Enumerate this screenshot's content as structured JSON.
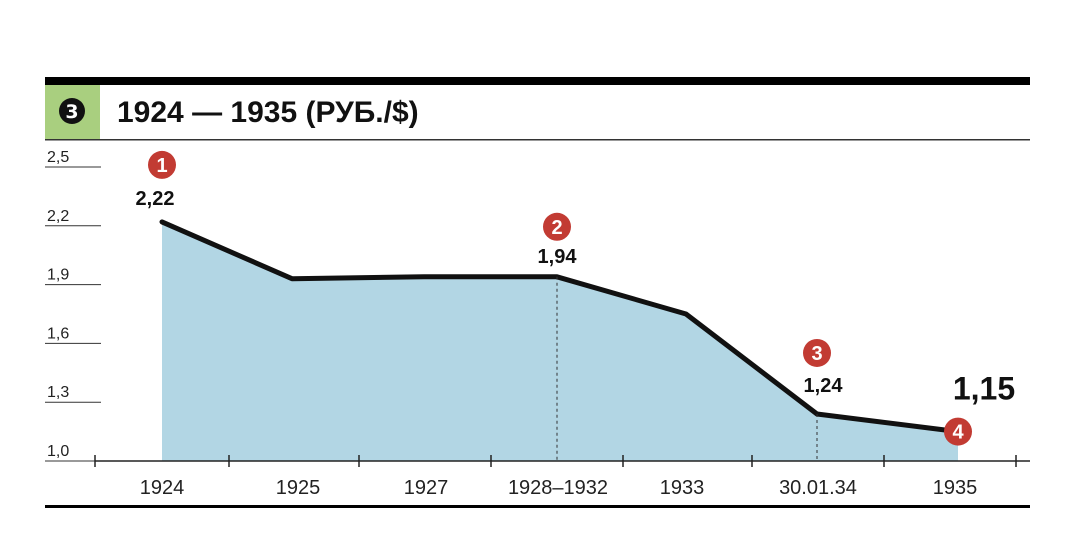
{
  "header": {
    "badge": "3",
    "title": "1924 — 1935 (РУБ./$)"
  },
  "colors": {
    "area": "#b2d6e4",
    "line": "#111111",
    "badge_bg": "#a9cf7f",
    "marker": "#c23b33"
  },
  "chart_data": {
    "type": "area",
    "title": "1924 — 1935 (РУБ./$)",
    "categories": [
      "1924",
      "1925",
      "1927",
      "1928–1932",
      "1933",
      "30.01.34",
      "1935"
    ],
    "values": [
      2.22,
      1.93,
      1.94,
      1.94,
      1.75,
      1.24,
      1.15
    ],
    "ylim": [
      1.0,
      2.5
    ],
    "yticks": [
      "2,5",
      "2,2",
      "1,9",
      "1,6",
      "1,3",
      "1,0"
    ],
    "ytick_values": [
      2.5,
      2.2,
      1.9,
      1.6,
      1.3,
      1.0
    ],
    "grid": false,
    "annotations": [
      {
        "marker": "1",
        "label": "2,22",
        "index": 0
      },
      {
        "marker": "2",
        "label": "1,94",
        "index": 3
      },
      {
        "marker": "3",
        "label": "1,24",
        "index": 5
      },
      {
        "marker": "4",
        "label": "1,15",
        "index": 6
      }
    ]
  }
}
